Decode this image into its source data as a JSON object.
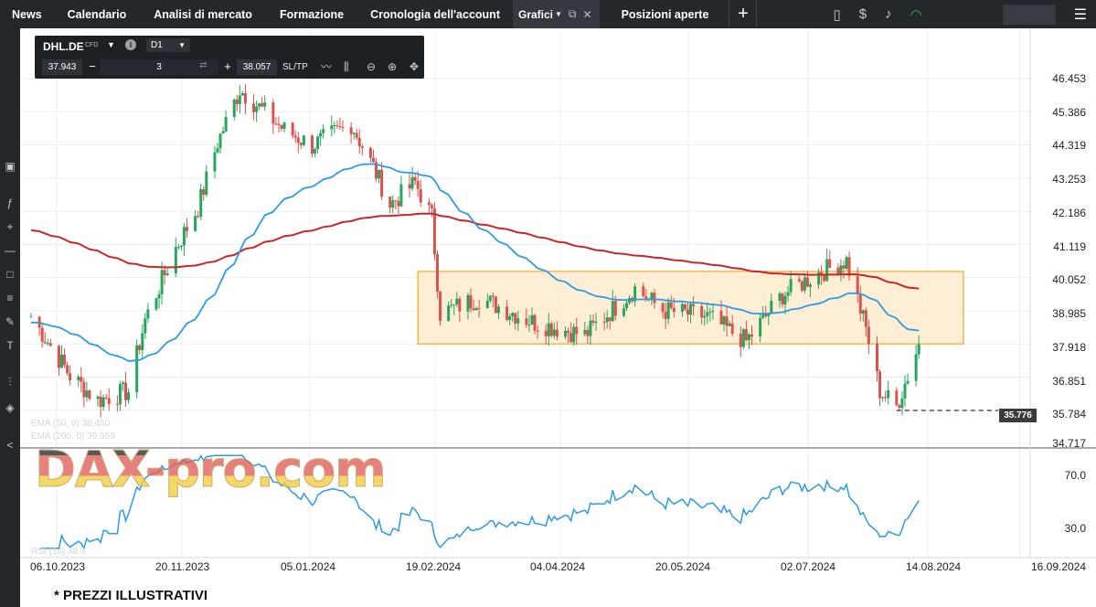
{
  "nav": {
    "items": [
      "News",
      "Calendario",
      "Analisi di mercato",
      "Formazione",
      "Cronologia dell'account"
    ],
    "active_tab": "Grafici",
    "positions": "Posizioni aperte",
    "add": "+"
  },
  "icons": {
    "left": [
      "monitor-icon",
      "function-icon",
      "crosshair-icon",
      "line-tool-icon",
      "rectangle-icon",
      "fibonacci-icon",
      "pencil-icon",
      "text-icon",
      "indicators-icon",
      "layers-icon",
      "share-icon"
    ],
    "top_right": [
      "layout-icon",
      "dollar-icon",
      "bell-icon",
      "wifi-icon",
      "menu-icon"
    ],
    "toolbar": [
      "line-chart-icon",
      "candles-icon",
      "zoom-out-icon",
      "zoom-in-icon",
      "move-icon"
    ]
  },
  "panel": {
    "symbol": "DHL.DE",
    "type": "CFD",
    "timeframe": "D1",
    "bid": "37.943",
    "quantity": "3",
    "ask": "38.057",
    "sltp": "SL/TP",
    "minus": "−",
    "plus": "+"
  },
  "chart": {
    "y_ticks": [
      "46.453",
      "45.386",
      "44.319",
      "43.253",
      "42.186",
      "41.119",
      "40.052",
      "38.985",
      "37.918",
      "36.851",
      "35.784",
      "34.717"
    ],
    "rsi_ticks": [
      "70.0",
      "30.0"
    ],
    "x_ticks": [
      "06.10.2023",
      "20.11.2023",
      "05.01.2024",
      "19.02.2024",
      "04.04.2024",
      "20.05.2024",
      "02.07.2024",
      "14.08.2024",
      "16.09.2024"
    ],
    "price_marker": "35.776",
    "legend_ema50": "EMA (50, 0) 38.480",
    "legend_ema200": "EMA (200, 0) 39.959",
    "legend_rsi": "RSI (14) 48.9"
  },
  "colors": {
    "up": "#26a65b",
    "down": "#d9534f",
    "ema50": "#2f9be0",
    "ema200": "#c62828",
    "range_fill": "#fde8c8",
    "range_border": "#f5a623",
    "rsi": "#2f9be0"
  },
  "chart_data": {
    "type": "candlestick",
    "symbol": "DHL.DE",
    "timeframe": "D1",
    "ylim": [
      34.717,
      46.453
    ],
    "x_range": [
      "06.10.2023",
      "16.09.2024"
    ],
    "anchors": [
      {
        "date": "06.10.2023",
        "close": 38.8
      },
      {
        "date": "20.10.2023",
        "close": 36.9
      },
      {
        "date": "30.10.2023",
        "close": 36.1
      },
      {
        "date": "10.11.2023",
        "close": 36.4
      },
      {
        "date": "16.11.2023",
        "close": 38.7
      },
      {
        "date": "27.11.2023",
        "close": 41.0
      },
      {
        "date": "05.12.2023",
        "close": 42.3
      },
      {
        "date": "12.12.2023",
        "close": 44.4
      },
      {
        "date": "20.12.2023",
        "close": 46.1
      },
      {
        "date": "05.01.2024",
        "close": 44.8
      },
      {
        "date": "15.01.2024",
        "close": 44.3
      },
      {
        "date": "29.01.2024",
        "close": 45.0
      },
      {
        "date": "06.02.2024",
        "close": 43.6
      },
      {
        "date": "12.02.2024",
        "close": 42.4
      },
      {
        "date": "21.02.2024",
        "close": 43.1
      },
      {
        "date": "27.02.2024",
        "close": 42.0
      },
      {
        "date": "01.03.2024",
        "close": 38.9
      },
      {
        "date": "15.03.2024",
        "close": 39.4
      },
      {
        "date": "04.04.2024",
        "close": 38.6
      },
      {
        "date": "22.04.2024",
        "close": 38.2
      },
      {
        "date": "10.05.2024",
        "close": 39.7
      },
      {
        "date": "20.05.2024",
        "close": 39.0
      },
      {
        "date": "05.06.2024",
        "close": 38.8
      },
      {
        "date": "19.06.2024",
        "close": 38.0
      },
      {
        "date": "02.07.2024",
        "close": 39.5
      },
      {
        "date": "15.07.2024",
        "close": 40.2
      },
      {
        "date": "25.07.2024",
        "close": 40.6
      },
      {
        "date": "01.08.2024",
        "close": 38.4
      },
      {
        "date": "06.08.2024",
        "close": 36.4
      },
      {
        "date": "12.08.2024",
        "close": 35.9
      },
      {
        "date": "20.08.2024",
        "close": 37.9
      }
    ],
    "range_box": {
      "from": "22.02.2024",
      "to": "05.09.2024",
      "low": 37.918,
      "high": 40.25
    },
    "ema50_last": 38.48,
    "ema200_last": 39.959,
    "rsi_last": 48.9,
    "support_line": 35.776
  }
}
